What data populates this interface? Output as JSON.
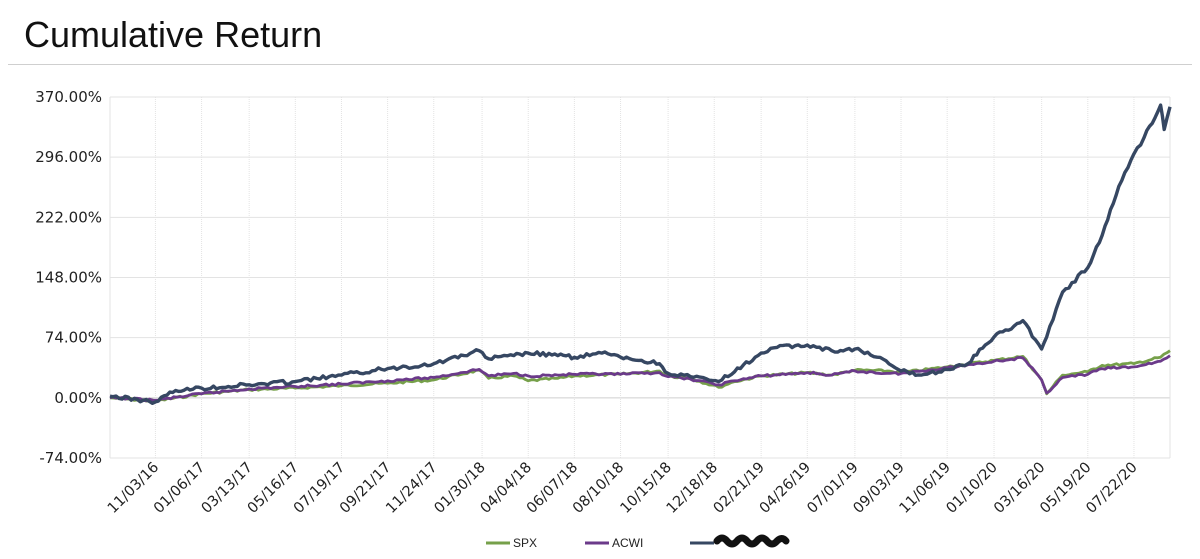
{
  "page": {
    "title": "Cumulative Return"
  },
  "colors": {
    "spx": "#76a04a",
    "acwi": "#6b3a8a",
    "portfolio": "#364762",
    "grid": "#e3e3e3",
    "zero_line": "#cfcfcf"
  },
  "chart_data": {
    "type": "line",
    "title": "Cumulative Return",
    "xlabel": "",
    "ylabel": "",
    "ylim": [
      -74,
      370
    ],
    "y_ticks": [
      -74,
      0,
      74,
      148,
      222,
      296,
      370
    ],
    "y_tick_labels": [
      "-74.00%",
      "0.00%",
      "74.00%",
      "148.00%",
      "222.00%",
      "296.00%",
      "370.00%"
    ],
    "x_tick_labels": [
      "11/03/16",
      "01/06/17",
      "03/13/17",
      "05/16/17",
      "07/19/17",
      "09/21/17",
      "11/24/17",
      "01/30/18",
      "04/04/18",
      "06/07/18",
      "08/10/18",
      "10/15/18",
      "12/18/18",
      "02/21/19",
      "04/26/19",
      "07/01/19",
      "09/03/19",
      "11/06/19",
      "01/10/20",
      "03/16/20",
      "05/19/20",
      "07/22/20"
    ],
    "grid": true,
    "legend_position": "bottom-center",
    "series": [
      {
        "name": "SPX",
        "color": "#76a04a",
        "x": [
          "09/01/16",
          "11/03/16",
          "01/06/17",
          "03/13/17",
          "05/16/17",
          "07/19/17",
          "09/21/17",
          "11/24/17",
          "01/26/18",
          "02/08/18",
          "03/15/18",
          "04/04/18",
          "05/15/18",
          "06/07/18",
          "08/10/18",
          "10/03/18",
          "10/15/18",
          "11/15/18",
          "12/24/18",
          "01/15/19",
          "02/21/19",
          "04/26/19",
          "05/30/19",
          "07/01/19",
          "08/15/19",
          "09/03/19",
          "11/06/19",
          "01/10/20",
          "02/19/20",
          "03/16/20",
          "03/23/20",
          "04/14/20",
          "05/19/20",
          "06/08/20",
          "07/22/20",
          "08/28/20",
          "09/10/20"
        ],
        "values": [
          0,
          -4,
          5,
          10,
          12,
          15,
          18,
          22,
          34,
          24,
          27,
          21,
          24,
          27,
          29,
          33,
          27,
          24,
          13,
          20,
          27,
          31,
          28,
          34,
          33,
          31,
          38,
          46,
          51,
          22,
          5,
          28,
          32,
          40,
          42,
          50,
          58
        ]
      },
      {
        "name": "ACWI",
        "color": "#6b3a8a",
        "x": [
          "09/01/16",
          "11/03/16",
          "01/06/17",
          "03/13/17",
          "05/16/17",
          "07/19/17",
          "09/21/17",
          "11/24/17",
          "01/26/18",
          "02/08/18",
          "03/15/18",
          "04/04/18",
          "05/15/18",
          "06/07/18",
          "08/10/18",
          "10/03/18",
          "10/15/18",
          "11/15/18",
          "12/24/18",
          "01/15/19",
          "02/21/19",
          "04/26/19",
          "05/30/19",
          "07/01/19",
          "08/15/19",
          "09/03/19",
          "11/06/19",
          "01/10/20",
          "02/19/20",
          "03/16/20",
          "03/23/20",
          "04/14/20",
          "05/19/20",
          "06/08/20",
          "07/22/20",
          "08/28/20",
          "09/10/20"
        ],
        "values": [
          0,
          -3,
          5,
          11,
          14,
          17,
          21,
          25,
          35,
          27,
          30,
          27,
          28,
          29,
          29,
          31,
          26,
          23,
          16,
          21,
          27,
          31,
          28,
          33,
          30,
          30,
          37,
          45,
          49,
          22,
          6,
          25,
          29,
          36,
          38,
          45,
          52
        ]
      },
      {
        "name": "",
        "color": "#364762",
        "x": [
          "09/01/16",
          "11/03/16",
          "12/01/16",
          "01/06/17",
          "03/13/17",
          "05/16/17",
          "07/19/17",
          "09/21/17",
          "11/24/17",
          "01/26/18",
          "02/08/18",
          "03/15/18",
          "04/04/18",
          "05/15/18",
          "06/07/18",
          "07/15/18",
          "08/10/18",
          "10/03/18",
          "10/15/18",
          "11/15/18",
          "12/24/18",
          "01/15/19",
          "02/21/19",
          "03/15/19",
          "04/26/19",
          "05/30/19",
          "07/01/19",
          "08/01/19",
          "09/03/19",
          "10/01/19",
          "11/06/19",
          "12/01/19",
          "01/10/20",
          "02/19/20",
          "03/16/20",
          "03/23/20",
          "04/14/20",
          "05/19/20",
          "06/08/20",
          "07/01/20",
          "07/22/20",
          "08/05/20",
          "08/28/20",
          "09/02/20",
          "09/10/20"
        ],
        "values": [
          2,
          -5,
          9,
          12,
          16,
          20,
          28,
          36,
          42,
          58,
          48,
          52,
          55,
          52,
          50,
          55,
          50,
          42,
          30,
          26,
          20,
          32,
          55,
          62,
          65,
          58,
          60,
          50,
          33,
          28,
          35,
          40,
          75,
          95,
          60,
          75,
          130,
          160,
          200,
          260,
          300,
          320,
          360,
          330,
          358
        ]
      }
    ]
  },
  "legend": {
    "items": [
      {
        "label": "SPX"
      },
      {
        "label": "ACWI"
      },
      {
        "label": ""
      }
    ]
  }
}
